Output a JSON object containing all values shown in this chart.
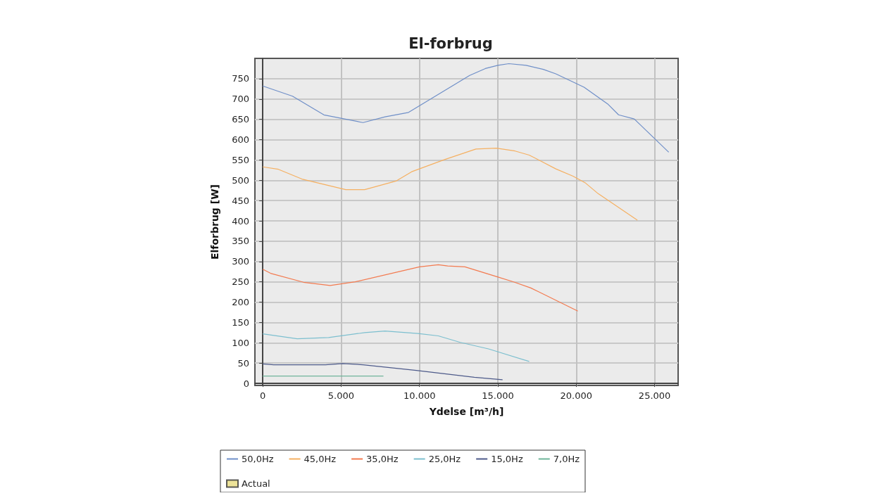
{
  "chart_data": {
    "type": "line",
    "title": "El-forbrug",
    "xlabel": "Ydelse [m³/h]",
    "ylabel": "Elforbrug [W]",
    "xlim": [
      -500,
      26500
    ],
    "xticks": [
      0,
      {
        "value": 5000,
        "label": "5.000"
      },
      {
        "value": 10000,
        "label": "10.000"
      },
      {
        "value": 15000,
        "label": "15.000"
      },
      {
        "value": 20000,
        "label": "20.000"
      },
      {
        "value": 25000,
        "label": "25.000"
      }
    ],
    "ylim": [
      -5,
      800
    ],
    "yticks": [
      0,
      50,
      100,
      150,
      200,
      250,
      300,
      350,
      400,
      450,
      500,
      550,
      600,
      650,
      700,
      750
    ],
    "grid": true,
    "legend": "bottom",
    "marker": "none",
    "line_style": "solid",
    "series": [
      {
        "name": "50,0Hz",
        "color": "#6f8fc8",
        "x": [
          0,
          1900,
          3900,
          6400,
          7800,
          9300,
          13200,
          14200,
          15000,
          15700,
          16800,
          17900,
          18700,
          20500,
          22000,
          22700,
          23700,
          25900
        ],
        "values": [
          732,
          707,
          661,
          642,
          656,
          667,
          758,
          775,
          783,
          787,
          783,
          773,
          762,
          729,
          688,
          661,
          651,
          569
        ]
      },
      {
        "name": "45,0Hz",
        "color": "#f5b062",
        "x": [
          0,
          1000,
          2500,
          5300,
          6500,
          8500,
          9500,
          11600,
          13600,
          14900,
          16100,
          17000,
          18700,
          19800,
          20600,
          21400,
          23900
        ],
        "values": [
          533,
          527,
          503,
          477,
          477,
          498,
          521,
          551,
          577,
          579,
          572,
          562,
          528,
          510,
          493,
          467,
          402
        ]
      },
      {
        "name": "35,0Hz",
        "color": "#f37a4f",
        "x": [
          0,
          500,
          2600,
          4300,
          5900,
          10000,
          11200,
          11800,
          12900,
          14900,
          16000,
          17100,
          20100
        ],
        "values": [
          281,
          271,
          249,
          241,
          250,
          287,
          292,
          289,
          287,
          263,
          250,
          235,
          178
        ]
      },
      {
        "name": "25,0Hz",
        "color": "#7cbfcf",
        "x": [
          0,
          2200,
          4200,
          6500,
          7800,
          9900,
          11200,
          12600,
          14400,
          17000
        ],
        "values": [
          122,
          110,
          113,
          125,
          129,
          123,
          117,
          101,
          85,
          54
        ]
      },
      {
        "name": "15,0Hz",
        "color": "#4d5a8a",
        "x": [
          0,
          700,
          4000,
          5100,
          6400,
          9800,
          13500,
          15300
        ],
        "values": [
          48,
          46,
          46,
          49,
          46,
          32,
          15,
          9
        ]
      },
      {
        "name": "7,0Hz",
        "color": "#6fb59a",
        "x": [
          0,
          7700
        ],
        "values": [
          18,
          18
        ]
      },
      {
        "name": "Actual",
        "type": "scatter",
        "color": "#e8dc80"
      }
    ]
  }
}
